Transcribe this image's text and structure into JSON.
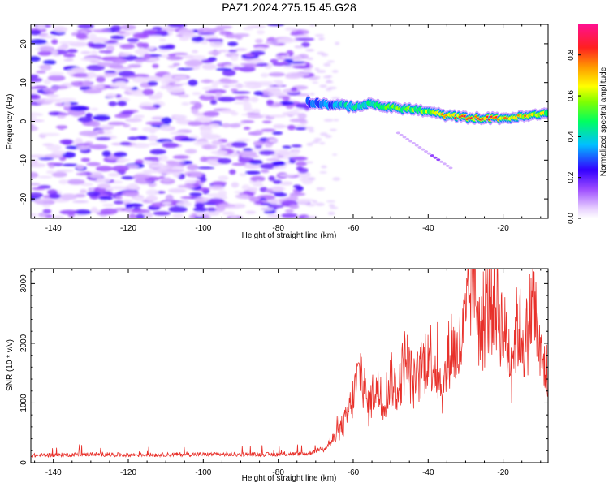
{
  "title": "PAZ1.2024.275.15.45.G28",
  "chart_data": [
    {
      "type": "heatmap",
      "xlabel": "Height of straight line (km)",
      "ylabel": "Frequency (Hz)",
      "xlim": [
        -146,
        -8
      ],
      "ylim": [
        -25,
        25
      ],
      "xticks": [
        -140,
        -120,
        -100,
        -80,
        -60,
        -40,
        -20
      ],
      "yticks": [
        -20,
        -10,
        0,
        10,
        20
      ],
      "colorbar": {
        "label": "Normalized spectral amplitude",
        "range": [
          0,
          0.95
        ],
        "ticks": [
          0.0,
          0.2,
          0.4,
          0.6,
          0.8
        ]
      },
      "features": {
        "noise_region_x": [
          -146,
          -72
        ],
        "signal_line": {
          "x": [
            -72,
            -65,
            -60,
            -55,
            -50,
            -45,
            -40,
            -35,
            -30,
            -25,
            -20,
            -15,
            -8
          ],
          "freq": [
            5,
            4.2,
            3.8,
            4.5,
            3.5,
            3.2,
            2.5,
            1.5,
            1.0,
            0.8,
            0.8,
            1.2,
            2.0
          ],
          "amplitude": [
            0.3,
            0.35,
            0.45,
            0.5,
            0.65,
            0.55,
            0.6,
            0.75,
            0.8,
            0.85,
            0.8,
            0.75,
            0.7
          ]
        },
        "branch": {
          "x": [
            -48,
            -34
          ],
          "freq": [
            -3,
            -12
          ]
        }
      }
    },
    {
      "type": "line",
      "xlabel": "Height of straight line (km)",
      "ylabel": "SNR (10 * v/v)",
      "xlim": [
        -146,
        -8
      ],
      "ylim": [
        0,
        3250
      ],
      "xticks": [
        -140,
        -120,
        -100,
        -80,
        -60,
        -40,
        -20
      ],
      "yticks": [
        0,
        1000,
        2000,
        3000
      ],
      "color": "#e8302a",
      "series": [
        {
          "x": [
            -146,
            -140,
            -130,
            -120,
            -110,
            -100,
            -90,
            -80,
            -72,
            -68,
            -65,
            -62,
            -60,
            -58,
            -56,
            -54,
            -52,
            -50,
            -48,
            -46,
            -44,
            -42,
            -40,
            -38,
            -36,
            -34,
            -32,
            -30,
            -28,
            -26,
            -24,
            -22,
            -20,
            -18,
            -16,
            -14,
            -12,
            -10,
            -8
          ],
          "values": [
            120,
            130,
            140,
            130,
            135,
            140,
            135,
            140,
            150,
            250,
            400,
            700,
            1100,
            1600,
            900,
            1300,
            1000,
            1400,
            1200,
            1800,
            1300,
            1500,
            1900,
            1600,
            1200,
            2000,
            1800,
            2300,
            3200,
            2100,
            2600,
            2800,
            2200,
            1800,
            2300,
            2000,
            2800,
            1700,
            1500
          ]
        }
      ]
    }
  ]
}
